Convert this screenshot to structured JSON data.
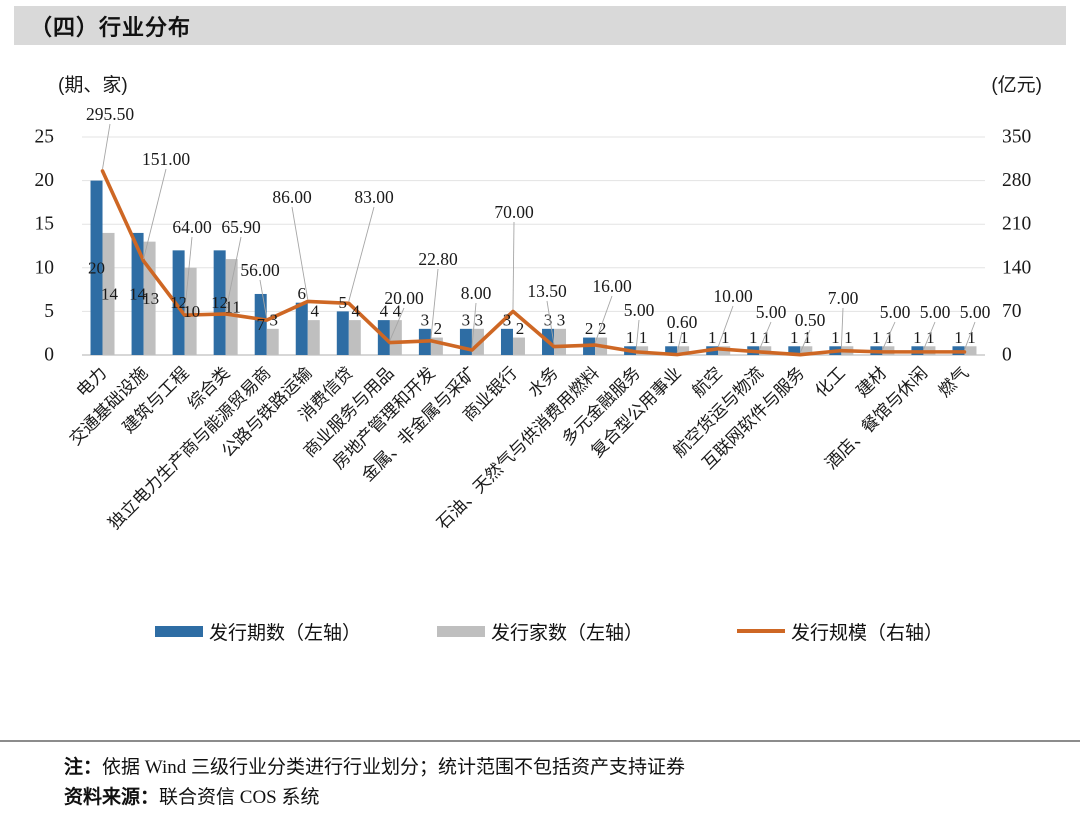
{
  "header": {
    "title": "（四）行业分布"
  },
  "axes": {
    "left_unit": "(期、家)",
    "right_unit": "(亿元)",
    "left_ticks": [
      0,
      5,
      10,
      15,
      20,
      25
    ],
    "right_ticks": [
      0,
      70,
      140,
      210,
      280,
      350
    ]
  },
  "chart_data": {
    "type": "bar",
    "subtype": "grouped-bar-with-line",
    "title": "（四）行业分布",
    "xlabel": "",
    "ylabel_left": "(期、家)",
    "ylabel_right": "(亿元)",
    "left_axis_range": [
      0,
      25
    ],
    "right_axis_range": [
      0,
      350
    ],
    "grid": true,
    "legend_position": "bottom",
    "categories": [
      "电力",
      "交通基础设施",
      "建筑与工程",
      "综合类",
      "独立电力生产商与能源贸易商",
      "公路与铁路运输",
      "消费信贷",
      "商业服务与用品",
      "房地产管理和开发",
      "金属、非金属与采矿",
      "商业银行",
      "水务",
      "石油、天然气与供消费用燃料",
      "多元金融服务",
      "复合型公用事业",
      "航空",
      "航空货运与物流",
      "互联网软件与服务",
      "化工",
      "建材",
      "酒店、餐馆与休闲",
      "燃气"
    ],
    "series": [
      {
        "name": "发行期数（左轴）",
        "type": "bar",
        "axis": "left",
        "color": "#2e6da4",
        "values": [
          20,
          14,
          12,
          12,
          7,
          6,
          5,
          4,
          3,
          3,
          3,
          3,
          2,
          1,
          1,
          1,
          1,
          1,
          1,
          1,
          1,
          1
        ]
      },
      {
        "name": "发行家数（左轴）",
        "type": "bar",
        "axis": "left",
        "color": "#bfbfbf",
        "values": [
          14,
          13,
          10,
          11,
          3,
          4,
          4,
          4,
          2,
          3,
          2,
          3,
          2,
          1,
          1,
          1,
          1,
          1,
          1,
          1,
          1,
          1
        ]
      },
      {
        "name": "发行规模（右轴）",
        "type": "line",
        "axis": "right",
        "color": "#ce6724",
        "values": [
          295.5,
          151.0,
          64.0,
          65.9,
          56.0,
          86.0,
          83.0,
          20.0,
          22.8,
          8.0,
          70.0,
          13.5,
          16.0,
          5.0,
          0.6,
          10.0,
          5.0,
          0.5,
          7.0,
          5.0,
          5.0,
          5.0
        ]
      }
    ]
  },
  "footer": {
    "note_prefix": "注：",
    "note": "依据 Wind 三级行业分类进行行业划分；统计范围不包括资产支持证券",
    "source_prefix": "资料来源：",
    "source": "联合资信 COS 系统"
  }
}
